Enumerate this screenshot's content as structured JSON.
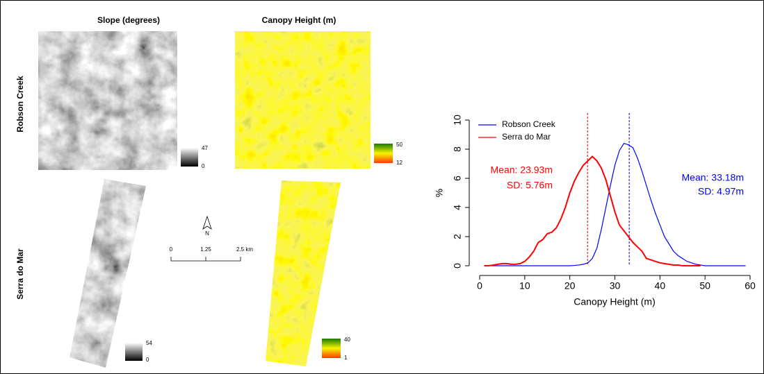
{
  "panels": {
    "column_titles": [
      "Slope (degrees)",
      "Canopy Height (m)"
    ],
    "row_labels": [
      "Robson Creek",
      "Serra do Mar"
    ],
    "legends": [
      {
        "max": 47,
        "min": 0
      },
      {
        "max": 50,
        "min": 12
      },
      {
        "max": 54,
        "min": 0
      },
      {
        "max": 40,
        "min": 1
      }
    ],
    "north_label": "N",
    "scale_bar": [
      "0",
      "1.25",
      "2.5 km"
    ]
  },
  "chart_data": {
    "type": "line",
    "xlabel": "Canopy Height (m)",
    "ylabel": "%",
    "xlim": [
      0,
      60
    ],
    "xticks": [
      0,
      10,
      20,
      30,
      40,
      50,
      60
    ],
    "ylim": [
      0,
      10
    ],
    "yticks": [
      0,
      2,
      4,
      6,
      8,
      10
    ],
    "legend": "top-left",
    "series": [
      {
        "name": "Robson Creek",
        "color": "#0000ff",
        "x": [
          1,
          2,
          3,
          4,
          5,
          6,
          7,
          8,
          9,
          10,
          11,
          12,
          13,
          14,
          15,
          16,
          17,
          18,
          19,
          20,
          21,
          22,
          23,
          24,
          25,
          26,
          27,
          28,
          29,
          30,
          31,
          32,
          33,
          34,
          35,
          36,
          37,
          38,
          39,
          40,
          41,
          42,
          43,
          44,
          45,
          46,
          47,
          48,
          49,
          50,
          51,
          52,
          53,
          54,
          55,
          56,
          57,
          58,
          59
        ],
        "values": [
          0,
          0,
          0,
          0,
          0,
          0,
          0,
          0,
          0,
          0,
          0,
          0,
          0,
          0,
          0,
          0,
          0,
          0,
          0,
          0,
          0.02,
          0.05,
          0.1,
          0.2,
          0.5,
          1.2,
          2.5,
          4.0,
          5.5,
          6.9,
          7.9,
          8.4,
          8.3,
          8.1,
          7.4,
          6.5,
          5.5,
          4.5,
          3.6,
          2.8,
          2.0,
          1.5,
          1.0,
          0.7,
          0.5,
          0.3,
          0.2,
          0.1,
          0.05,
          0,
          0,
          0,
          0,
          0,
          0,
          0,
          0,
          0,
          0
        ]
      },
      {
        "name": "Serra do Mar",
        "color": "#ff0000",
        "x": [
          1,
          2,
          3,
          4,
          5,
          6,
          7,
          8,
          9,
          10,
          11,
          12,
          13,
          14,
          15,
          16,
          17,
          18,
          19,
          20,
          21,
          22,
          23,
          24,
          25,
          26,
          27,
          28,
          29,
          30,
          31,
          32,
          33,
          34,
          35,
          36,
          37,
          38,
          39,
          40,
          41,
          42,
          43,
          44,
          45,
          46,
          47,
          48,
          49
        ],
        "values": [
          0,
          0,
          0.05,
          0.1,
          0.15,
          0.15,
          0.1,
          0.1,
          0.15,
          0.3,
          0.6,
          1.0,
          1.6,
          1.8,
          2.2,
          2.3,
          2.6,
          3.2,
          4.0,
          5.0,
          5.8,
          6.4,
          6.9,
          7.2,
          7.5,
          7.2,
          6.7,
          5.9,
          4.8,
          3.7,
          2.8,
          2.4,
          2.0,
          1.6,
          1.3,
          1.0,
          0.5,
          0.4,
          0.3,
          0.2,
          0.15,
          0.1,
          0.05,
          0.05,
          0,
          0,
          0,
          0,
          0
        ]
      }
    ],
    "mean_lines": [
      {
        "value": 23.93,
        "color": "#cc0000"
      },
      {
        "value": 33.18,
        "color": "#0000cc"
      }
    ],
    "annotations": [
      {
        "text": "Mean: 23.93m",
        "color": "#ff0000"
      },
      {
        "text": "SD: 5.76m",
        "color": "#ff0000"
      },
      {
        "text": "Mean: 33.18m",
        "color": "#0000ff"
      },
      {
        "text": "SD: 4.97m",
        "color": "#0000ff"
      }
    ]
  }
}
